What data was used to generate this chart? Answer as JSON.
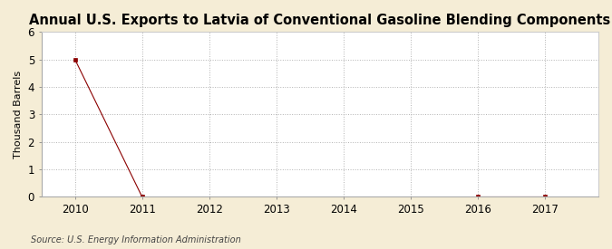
{
  "title": "Annual U.S. Exports to Latvia of Conventional Gasoline Blending Components",
  "ylabel": "Thousand Barrels",
  "source_text": "Source: U.S. Energy Information Administration",
  "x_data": [
    2010,
    2011,
    2016,
    2017
  ],
  "y_data": [
    5,
    0,
    0,
    0
  ],
  "xlim": [
    2009.5,
    2017.8
  ],
  "ylim": [
    0,
    6
  ],
  "yticks": [
    0,
    1,
    2,
    3,
    4,
    5,
    6
  ],
  "xticks": [
    2010,
    2011,
    2012,
    2013,
    2014,
    2015,
    2016,
    2017
  ],
  "line_color": "#8B0000",
  "marker_color": "#8B0000",
  "figure_bg_color": "#F5EDD6",
  "plot_bg_color": "#FFFFFF",
  "grid_color": "#AAAAAA",
  "title_fontsize": 10.5,
  "label_fontsize": 8,
  "tick_fontsize": 8.5,
  "source_fontsize": 7
}
